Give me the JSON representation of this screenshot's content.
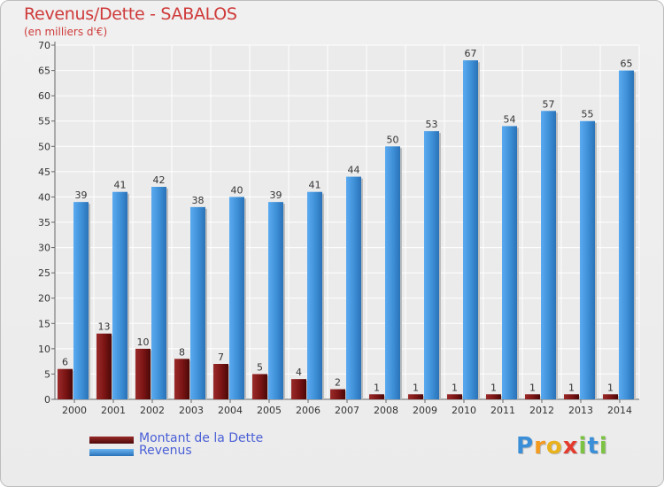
{
  "title": "Revenus/Dette - SABALOS",
  "subtitle": "(en milliers d'€)",
  "chart_data": {
    "type": "bar",
    "categories": [
      "2000",
      "2001",
      "2002",
      "2003",
      "2004",
      "2005",
      "2006",
      "2007",
      "2008",
      "2009",
      "2010",
      "2011",
      "2012",
      "2013",
      "2014"
    ],
    "series": [
      {
        "name": "Montant de la Dette",
        "color": "#7a1414",
        "values": [
          6,
          13,
          10,
          8,
          7,
          5,
          4,
          2,
          1,
          1,
          1,
          1,
          1,
          1,
          1
        ]
      },
      {
        "name": "Revenus",
        "color": "#3d8fd6",
        "values": [
          39,
          41,
          42,
          38,
          40,
          39,
          41,
          44,
          50,
          53,
          67,
          54,
          57,
          55,
          65
        ]
      }
    ],
    "y_ticks": [
      0,
      5,
      10,
      15,
      20,
      25,
      30,
      35,
      40,
      45,
      50,
      55,
      60,
      65,
      70
    ],
    "ylim": [
      0,
      70
    ],
    "grid": true,
    "legend_position": "bottom-left"
  },
  "legend": {
    "debt_label": "Montant de la Dette",
    "revenue_label": "Revenus"
  },
  "logo": {
    "letters": [
      "P",
      "r",
      "o",
      "x",
      "i",
      "t",
      "i"
    ],
    "colors": [
      "#3a8fd8",
      "#f39a1f",
      "#e9b21c",
      "#e33b2d",
      "#7cc243",
      "#3a8fd8",
      "#7cc243"
    ]
  }
}
